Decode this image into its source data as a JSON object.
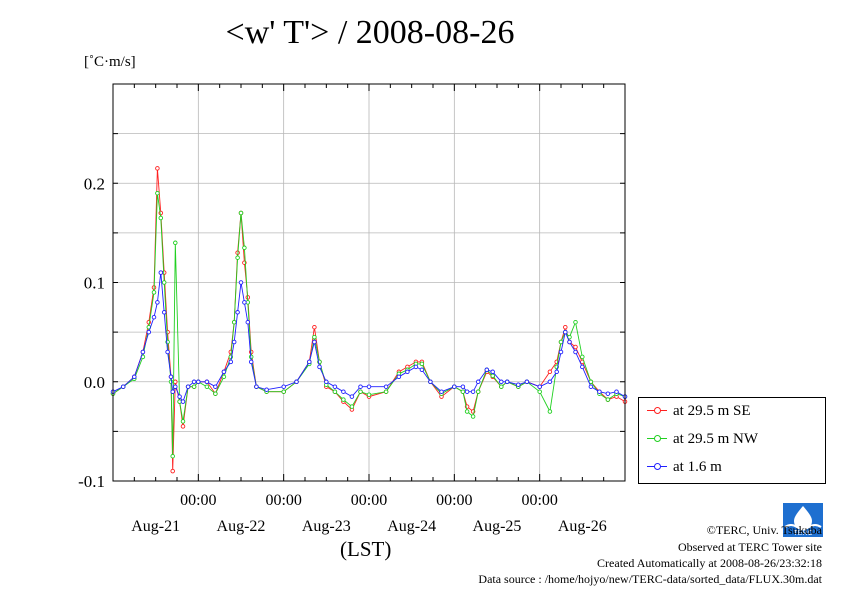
{
  "title": "<w' T'> / 2008-08-26",
  "unit": "[˚C·m/s]",
  "xlabel": "(LST)",
  "credits": [
    "©TERC, Univ. Tsukuba",
    "Observed at TERC Tower site",
    "Created Automatically at 2008-08-26/23:32:18",
    "Data source : /home/hojyo/new/TERC-data/sorted_data/FLUX.30m.dat"
  ],
  "logo_text": "TERC",
  "chart_data": {
    "type": "line",
    "ylim": [
      -0.1,
      0.3
    ],
    "xlim": [
      0,
      6
    ],
    "yticks": [
      -0.1,
      0.0,
      0.1,
      0.2
    ],
    "ytick_labels": [
      "-0.1",
      "0.0",
      "0.1",
      "0.2"
    ],
    "xticks": [
      1,
      2,
      3,
      4,
      5
    ],
    "xtick_time_label": "00:00",
    "date_labels": [
      {
        "label": "Aug-21",
        "x": 0.5
      },
      {
        "label": "Aug-22",
        "x": 1.5
      },
      {
        "label": "Aug-23",
        "x": 2.5
      },
      {
        "label": "Aug-24",
        "x": 3.5
      },
      {
        "label": "Aug-25",
        "x": 4.5
      },
      {
        "label": "Aug-26",
        "x": 5.5
      }
    ],
    "grid": true,
    "legend_position": "right",
    "series": [
      {
        "name": "at 29.5 m SE",
        "color": "#ff2020",
        "points": [
          [
            0,
            -0.012
          ],
          [
            0.12,
            -0.005
          ],
          [
            0.25,
            0.005
          ],
          [
            0.35,
            0.03
          ],
          [
            0.42,
            0.06
          ],
          [
            0.48,
            0.095
          ],
          [
            0.52,
            0.215
          ],
          [
            0.56,
            0.17
          ],
          [
            0.6,
            0.11
          ],
          [
            0.64,
            0.05
          ],
          [
            0.68,
            0.005
          ],
          [
            0.7,
            -0.09
          ],
          [
            0.73,
            0.0
          ],
          [
            0.78,
            -0.02
          ],
          [
            0.82,
            -0.045
          ],
          [
            0.88,
            -0.005
          ],
          [
            0.95,
            -0.005
          ],
          [
            1.0,
            0.0
          ],
          [
            1.1,
            0.0
          ],
          [
            1.2,
            -0.012
          ],
          [
            1.3,
            0.01
          ],
          [
            1.38,
            0.03
          ],
          [
            1.42,
            0.06
          ],
          [
            1.46,
            0.13
          ],
          [
            1.5,
            0.17
          ],
          [
            1.54,
            0.12
          ],
          [
            1.58,
            0.085
          ],
          [
            1.62,
            0.03
          ],
          [
            1.68,
            -0.005
          ],
          [
            1.8,
            -0.01
          ],
          [
            2.0,
            -0.01
          ],
          [
            2.15,
            0.0
          ],
          [
            2.3,
            0.02
          ],
          [
            2.36,
            0.055
          ],
          [
            2.42,
            0.02
          ],
          [
            2.5,
            -0.005
          ],
          [
            2.6,
            -0.01
          ],
          [
            2.7,
            -0.02
          ],
          [
            2.8,
            -0.028
          ],
          [
            2.9,
            -0.01
          ],
          [
            3.0,
            -0.015
          ],
          [
            3.2,
            -0.01
          ],
          [
            3.35,
            0.01
          ],
          [
            3.45,
            0.015
          ],
          [
            3.55,
            0.02
          ],
          [
            3.62,
            0.02
          ],
          [
            3.72,
            0.0
          ],
          [
            3.85,
            -0.015
          ],
          [
            4.0,
            -0.005
          ],
          [
            4.1,
            -0.01
          ],
          [
            4.15,
            -0.025
          ],
          [
            4.22,
            -0.03
          ],
          [
            4.28,
            -0.01
          ],
          [
            4.38,
            0.01
          ],
          [
            4.45,
            0.005
          ],
          [
            4.55,
            -0.005
          ],
          [
            4.62,
            0.0
          ],
          [
            4.75,
            -0.005
          ],
          [
            4.85,
            0.0
          ],
          [
            5.0,
            -0.005
          ],
          [
            5.12,
            0.01
          ],
          [
            5.2,
            0.02
          ],
          [
            5.25,
            0.04
          ],
          [
            5.3,
            0.055
          ],
          [
            5.35,
            0.04
          ],
          [
            5.42,
            0.035
          ],
          [
            5.5,
            0.02
          ],
          [
            5.6,
            0.0
          ],
          [
            5.7,
            -0.01
          ],
          [
            5.8,
            -0.018
          ],
          [
            5.9,
            -0.015
          ],
          [
            6.0,
            -0.02
          ]
        ]
      },
      {
        "name": "at 29.5 m NW",
        "color": "#20d020",
        "points": [
          [
            0,
            -0.012
          ],
          [
            0.12,
            -0.005
          ],
          [
            0.25,
            0.003
          ],
          [
            0.35,
            0.025
          ],
          [
            0.42,
            0.055
          ],
          [
            0.48,
            0.09
          ],
          [
            0.52,
            0.19
          ],
          [
            0.56,
            0.165
          ],
          [
            0.6,
            0.1
          ],
          [
            0.64,
            0.04
          ],
          [
            0.68,
            0.0
          ],
          [
            0.7,
            -0.075
          ],
          [
            0.73,
            0.14
          ],
          [
            0.78,
            -0.02
          ],
          [
            0.82,
            -0.04
          ],
          [
            0.88,
            -0.005
          ],
          [
            0.95,
            -0.005
          ],
          [
            1.0,
            0.0
          ],
          [
            1.1,
            -0.005
          ],
          [
            1.2,
            -0.012
          ],
          [
            1.3,
            0.005
          ],
          [
            1.38,
            0.025
          ],
          [
            1.42,
            0.06
          ],
          [
            1.46,
            0.125
          ],
          [
            1.5,
            0.17
          ],
          [
            1.54,
            0.135
          ],
          [
            1.58,
            0.08
          ],
          [
            1.62,
            0.025
          ],
          [
            1.68,
            -0.005
          ],
          [
            1.8,
            -0.01
          ],
          [
            2.0,
            -0.01
          ],
          [
            2.15,
            0.0
          ],
          [
            2.3,
            0.018
          ],
          [
            2.36,
            0.045
          ],
          [
            2.42,
            0.02
          ],
          [
            2.5,
            -0.003
          ],
          [
            2.6,
            -0.01
          ],
          [
            2.7,
            -0.018
          ],
          [
            2.8,
            -0.025
          ],
          [
            2.9,
            -0.01
          ],
          [
            3.0,
            -0.013
          ],
          [
            3.2,
            -0.01
          ],
          [
            3.35,
            0.008
          ],
          [
            3.45,
            0.012
          ],
          [
            3.55,
            0.018
          ],
          [
            3.62,
            0.018
          ],
          [
            3.72,
            0.0
          ],
          [
            3.85,
            -0.012
          ],
          [
            4.0,
            -0.005
          ],
          [
            4.1,
            -0.01
          ],
          [
            4.15,
            -0.03
          ],
          [
            4.22,
            -0.035
          ],
          [
            4.28,
            -0.01
          ],
          [
            4.38,
            0.012
          ],
          [
            4.45,
            0.006
          ],
          [
            4.55,
            -0.005
          ],
          [
            4.62,
            0.0
          ],
          [
            4.75,
            -0.005
          ],
          [
            4.85,
            0.0
          ],
          [
            5.0,
            -0.01
          ],
          [
            5.12,
            -0.03
          ],
          [
            5.2,
            0.015
          ],
          [
            5.25,
            0.04
          ],
          [
            5.3,
            0.05
          ],
          [
            5.35,
            0.045
          ],
          [
            5.42,
            0.06
          ],
          [
            5.5,
            0.025
          ],
          [
            5.6,
            0.0
          ],
          [
            5.7,
            -0.012
          ],
          [
            5.8,
            -0.018
          ],
          [
            5.9,
            -0.012
          ],
          [
            6.0,
            -0.015
          ]
        ]
      },
      {
        "name": "at 1.6 m",
        "color": "#2020ff",
        "points": [
          [
            0,
            -0.01
          ],
          [
            0.12,
            -0.005
          ],
          [
            0.25,
            0.005
          ],
          [
            0.35,
            0.03
          ],
          [
            0.42,
            0.05
          ],
          [
            0.48,
            0.065
          ],
          [
            0.52,
            0.08
          ],
          [
            0.56,
            0.11
          ],
          [
            0.6,
            0.07
          ],
          [
            0.64,
            0.03
          ],
          [
            0.68,
            0.005
          ],
          [
            0.7,
            -0.01
          ],
          [
            0.73,
            -0.005
          ],
          [
            0.78,
            -0.015
          ],
          [
            0.82,
            -0.02
          ],
          [
            0.88,
            -0.005
          ],
          [
            0.95,
            0.0
          ],
          [
            1.0,
            0.0
          ],
          [
            1.1,
            0.0
          ],
          [
            1.2,
            -0.005
          ],
          [
            1.3,
            0.01
          ],
          [
            1.38,
            0.02
          ],
          [
            1.42,
            0.04
          ],
          [
            1.46,
            0.07
          ],
          [
            1.5,
            0.1
          ],
          [
            1.54,
            0.08
          ],
          [
            1.58,
            0.06
          ],
          [
            1.62,
            0.02
          ],
          [
            1.68,
            -0.005
          ],
          [
            1.8,
            -0.008
          ],
          [
            2.0,
            -0.005
          ],
          [
            2.15,
            0.0
          ],
          [
            2.3,
            0.02
          ],
          [
            2.36,
            0.04
          ],
          [
            2.42,
            0.015
          ],
          [
            2.5,
            0.0
          ],
          [
            2.6,
            -0.005
          ],
          [
            2.7,
            -0.01
          ],
          [
            2.8,
            -0.015
          ],
          [
            2.9,
            -0.005
          ],
          [
            3.0,
            -0.005
          ],
          [
            3.2,
            -0.005
          ],
          [
            3.35,
            0.005
          ],
          [
            3.45,
            0.01
          ],
          [
            3.55,
            0.015
          ],
          [
            3.62,
            0.012
          ],
          [
            3.72,
            0.0
          ],
          [
            3.85,
            -0.01
          ],
          [
            4.0,
            -0.005
          ],
          [
            4.1,
            -0.005
          ],
          [
            4.15,
            -0.01
          ],
          [
            4.22,
            -0.01
          ],
          [
            4.28,
            0.0
          ],
          [
            4.38,
            0.012
          ],
          [
            4.45,
            0.01
          ],
          [
            4.55,
            0.0
          ],
          [
            4.62,
            0.0
          ],
          [
            4.75,
            -0.003
          ],
          [
            4.85,
            0.0
          ],
          [
            5.0,
            -0.005
          ],
          [
            5.12,
            0.0
          ],
          [
            5.2,
            0.01
          ],
          [
            5.25,
            0.03
          ],
          [
            5.3,
            0.05
          ],
          [
            5.35,
            0.04
          ],
          [
            5.42,
            0.03
          ],
          [
            5.5,
            0.015
          ],
          [
            5.6,
            -0.005
          ],
          [
            5.7,
            -0.01
          ],
          [
            5.8,
            -0.012
          ],
          [
            5.9,
            -0.01
          ],
          [
            6.0,
            -0.015
          ]
        ]
      }
    ]
  }
}
